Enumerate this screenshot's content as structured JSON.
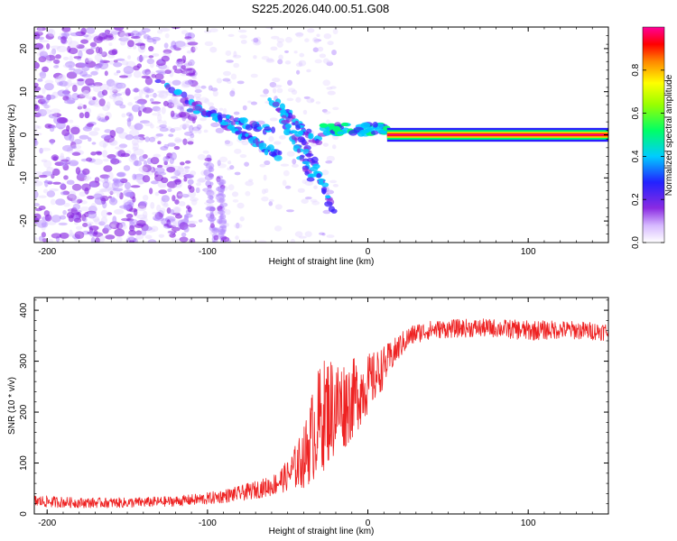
{
  "title": "S225.2026.040.00.51.G08",
  "chart_data": [
    {
      "type": "heatmap",
      "name": "spectrogram",
      "xlabel": "Height of straight line (km)",
      "ylabel": "Frequency (Hz)",
      "xlim": [
        -208,
        150
      ],
      "ylim": [
        -25,
        25
      ],
      "xticks": [
        -200,
        -100,
        0,
        100
      ],
      "xtick_labels": [
        "-200",
        "-100",
        "0",
        "100"
      ],
      "yticks": [
        -20,
        -10,
        0,
        10,
        20
      ],
      "ytick_labels": [
        "-20",
        "-10",
        "0",
        "10",
        "20"
      ],
      "colorbar": {
        "label": "Normalized spectral amplitude",
        "range": [
          0,
          1
        ],
        "ticks": [
          0.0,
          0.2,
          0.4,
          0.6,
          0.8
        ],
        "tick_labels": [
          "0.0",
          "0.2",
          "0.4",
          "0.6",
          "0.8"
        ],
        "colors": [
          "#ffffff",
          "#8a2be2",
          "#0000ff",
          "#00ffff",
          "#00ff00",
          "#ffff00",
          "#ff8000",
          "#ff0000",
          "#ff00aa"
        ]
      },
      "features": [
        {
          "region": "x -208 to -110 km",
          "description": "diffuse scattered noise, amplitude 0.0-0.3"
        },
        {
          "region": "x -110 to -20 km",
          "description": "descending tracks from about 10 Hz to -5 Hz, amplitude up to 0.5"
        },
        {
          "region": "x -20 to 12 km",
          "description": "signal converging near 1 Hz"
        },
        {
          "region": "x 12 to 150 km",
          "description": "steady tone at about 0 Hz, amplitude near 1.0"
        }
      ]
    },
    {
      "type": "line",
      "name": "snr",
      "xlabel": "Height of straight line (km)",
      "ylabel": "SNR (10 * v/v)",
      "xlim": [
        -208,
        150
      ],
      "ylim": [
        0,
        425
      ],
      "xticks": [
        -200,
        -100,
        0,
        100
      ],
      "xtick_labels": [
        "-200",
        "-100",
        "0",
        "100"
      ],
      "yticks": [
        0,
        100,
        200,
        300,
        400
      ],
      "ytick_labels": [
        "0",
        "100",
        "200",
        "300",
        "400"
      ],
      "color": "#ee2222",
      "series": [
        {
          "name": "SNR",
          "x": [
            -208,
            -180,
            -150,
            -120,
            -100,
            -80,
            -60,
            -50,
            -40,
            -35,
            -30,
            -25,
            -20,
            -15,
            -10,
            -5,
            0,
            5,
            10,
            15,
            20,
            25,
            30,
            40,
            60,
            80,
            100,
            120,
            150
          ],
          "values": [
            25,
            22,
            22,
            25,
            30,
            40,
            55,
            75,
            110,
            150,
            185,
            205,
            210,
            215,
            225,
            240,
            255,
            270,
            290,
            310,
            330,
            345,
            355,
            362,
            365,
            365,
            360,
            362,
            358
          ],
          "noise_amplitude": [
            12,
            10,
            10,
            10,
            12,
            15,
            20,
            30,
            60,
            90,
            110,
            110,
            100,
            90,
            80,
            70,
            60,
            50,
            40,
            30,
            25,
            22,
            20,
            18,
            18,
            18,
            20,
            18,
            18
          ]
        }
      ]
    }
  ]
}
